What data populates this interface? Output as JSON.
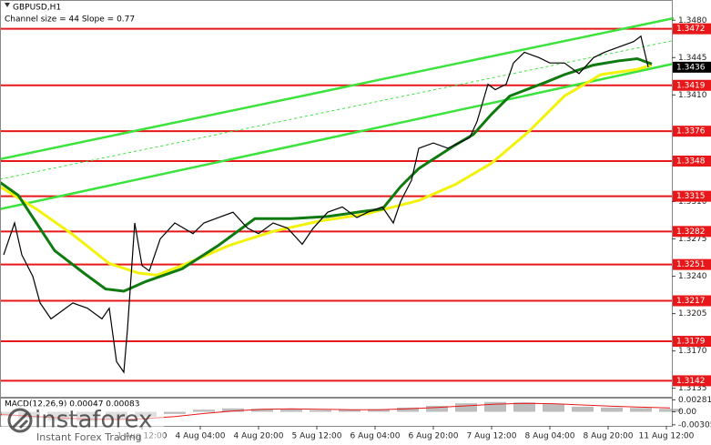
{
  "header": {
    "symbol": "GBPUSD,H1",
    "channel_info": "Channel size = 44 Slope = 0.77"
  },
  "chart_data": {
    "type": "line",
    "xlim": [
      0,
      184.5
    ],
    "xticks": [
      {
        "value": 39,
        "label": "1 Aug 12:00"
      },
      {
        "value": 55,
        "label": "4 Aug 04:00"
      },
      {
        "value": 71,
        "label": "4 Aug 20:00"
      },
      {
        "value": 87,
        "label": "5 Aug 12:00"
      },
      {
        "value": 103,
        "label": "6 Aug 04:00"
      },
      {
        "value": 119,
        "label": "6 Aug 20:00"
      },
      {
        "value": 135,
        "label": "7 Aug 12:00"
      },
      {
        "value": 151,
        "label": "8 Aug 04:00"
      },
      {
        "value": 167,
        "label": "8 Aug 20:00"
      },
      {
        "value": 183,
        "label": "11 Aug 12:00"
      }
    ],
    "ylim": [
      1.3127,
      1.3499
    ],
    "yticks": [
      {
        "value": 1.348,
        "label": "1.3480"
      },
      1.3445,
      {
        "value": 1.341,
        "label": "1.3410"
      },
      {
        "value": 1.331,
        "label": "1.3310"
      },
      1.3275,
      {
        "value": 1.324,
        "label": "1.3240"
      },
      1.3205,
      {
        "value": 1.317,
        "label": "1.3170"
      },
      1.3135
    ],
    "levels": [
      1.3472,
      1.3419,
      1.3376,
      1.3348,
      1.3315,
      1.3282,
      1.3251,
      1.3217,
      1.3179,
      1.3142
    ],
    "level_color": "#e8181a",
    "current_price": 1.3436,
    "channel_lines": [
      {
        "color": "#3ce33c",
        "dashed": false,
        "x": [
          0,
          185
        ],
        "values": [
          1.33498,
          1.34819
        ]
      },
      {
        "color": "#3ce33c",
        "dashed": false,
        "x": [
          0,
          185
        ],
        "values": [
          1.33029,
          1.34393
        ]
      },
      {
        "color": "#3ce33c",
        "dashed": true,
        "x": [
          0,
          185
        ],
        "values": [
          1.3331,
          1.3461
        ]
      }
    ],
    "series": [
      {
        "color": "#f2f20a",
        "x": [
          0,
          10,
          20,
          30,
          38,
          43,
          50,
          63,
          75,
          88,
          100,
          108,
          115,
          125,
          135,
          145,
          155,
          165,
          175,
          179
        ],
        "values": [
          1.3324,
          1.3303,
          1.3279,
          1.3252,
          1.3243,
          1.3241,
          1.325,
          1.3269,
          1.3282,
          1.3292,
          1.3298,
          1.3305,
          1.3311,
          1.3326,
          1.3346,
          1.3375,
          1.3409,
          1.3429,
          1.3434,
          1.3438
        ]
      },
      {
        "color": "#0f7a0f",
        "x": [
          0,
          5,
          10,
          15,
          23,
          29,
          34,
          40,
          50,
          60,
          70,
          80,
          90,
          100,
          105,
          110,
          115,
          120,
          125,
          130,
          135,
          140,
          150,
          155,
          163,
          170,
          175,
          179
        ],
        "values": [
          1.3328,
          1.3316,
          1.329,
          1.3264,
          1.3243,
          1.3228,
          1.3226,
          1.3235,
          1.3247,
          1.3269,
          1.3294,
          1.3294,
          1.3296,
          1.3301,
          1.3303,
          1.3324,
          1.3341,
          1.3352,
          1.3363,
          1.3373,
          1.3392,
          1.3409,
          1.3422,
          1.3429,
          1.3438,
          1.3442,
          1.3444,
          1.3439
        ]
      },
      {
        "color": "#000000",
        "x": [
          1,
          4,
          6,
          9,
          11,
          14,
          16,
          20,
          24,
          28,
          30,
          32,
          34,
          35,
          37,
          39,
          41,
          44,
          48,
          53,
          56,
          60,
          64,
          68,
          71,
          75,
          79,
          83,
          86,
          90,
          94,
          98,
          101,
          105,
          108,
          110,
          113,
          115,
          119,
          123,
          126,
          129,
          131,
          134,
          136,
          139,
          141,
          144,
          148,
          151,
          155,
          159,
          163,
          166,
          170,
          174,
          176,
          178
        ],
        "values": [
          1.326,
          1.329,
          1.326,
          1.324,
          1.3215,
          1.32,
          1.3205,
          1.3215,
          1.321,
          1.32,
          1.321,
          1.316,
          1.315,
          1.319,
          1.329,
          1.325,
          1.3245,
          1.3275,
          1.329,
          1.328,
          1.329,
          1.3295,
          1.33,
          1.3285,
          1.328,
          1.329,
          1.3285,
          1.327,
          1.3285,
          1.33,
          1.3305,
          1.3295,
          1.33,
          1.3305,
          1.329,
          1.331,
          1.333,
          1.336,
          1.3365,
          1.336,
          1.3365,
          1.337,
          1.3385,
          1.342,
          1.3415,
          1.342,
          1.344,
          1.345,
          1.3445,
          1.344,
          1.344,
          1.343,
          1.3445,
          1.345,
          1.3455,
          1.346,
          1.3465,
          1.3436
        ]
      }
    ],
    "macd": {
      "label": "MACD(12,26,9) 0.00047 0.00083",
      "ylim": [
        -0.0033,
        0.0031
      ],
      "yticks": [
        0.00281,
        {
          "value": 0,
          "label": "0.00"
        },
        -0.00305
      ],
      "x": [
        0,
        8,
        16,
        24,
        32,
        40,
        48,
        56,
        64,
        72,
        80,
        88,
        96,
        104,
        112,
        120,
        128,
        136,
        144,
        152,
        160,
        168,
        176,
        184
      ],
      "histogram": [
        -0.001,
        -0.0015,
        -0.002,
        -0.0022,
        -0.0018,
        -0.0012,
        -0.0005,
        0.0005,
        0.0008,
        0.0007,
        0.0006,
        0.0004,
        0.0005,
        0.0006,
        0.001,
        0.0014,
        0.002,
        0.0023,
        0.0022,
        0.0018,
        0.0012,
        0.001,
        0.0009,
        0.0007
      ],
      "histogram_color": "#bdbdbd",
      "signal": [
        -0.0006,
        -0.001,
        -0.0014,
        -0.0017,
        -0.0018,
        -0.0016,
        -0.0011,
        -0.0004,
        0.0002,
        0.0006,
        0.0007,
        0.0006,
        0.0005,
        0.0005,
        0.0007,
        0.001,
        0.0014,
        0.0018,
        0.002,
        0.0019,
        0.0016,
        0.0013,
        0.0011,
        0.0009
      ],
      "signal_color": "#e8181a"
    }
  },
  "watermark": {
    "brand": "instaforex",
    "tagline": "Instant Forex Trading"
  }
}
